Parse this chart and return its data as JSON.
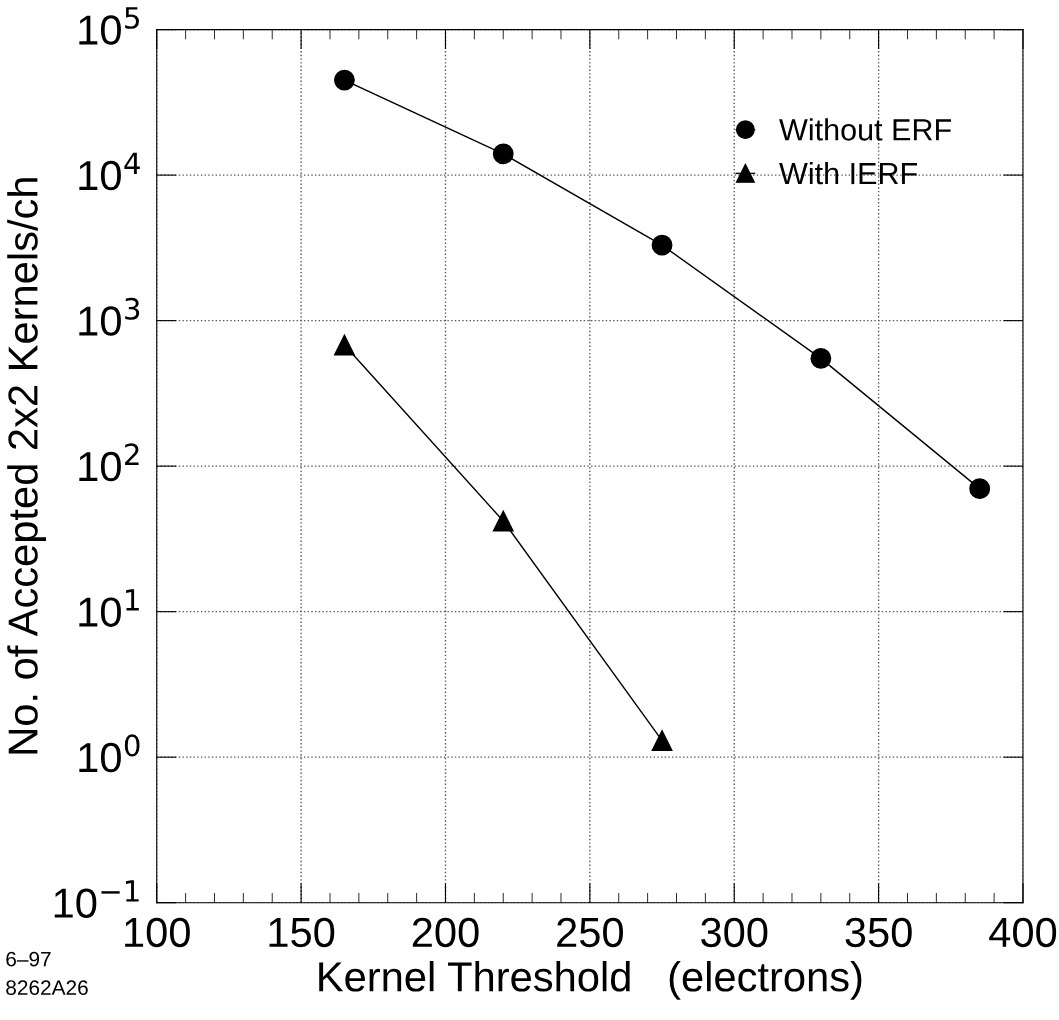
{
  "chart_data": {
    "type": "line",
    "xlabel": "Kernel Threshold   (electrons)",
    "ylabel": "No. of Accepted 2x2 Kernels/ch",
    "x": [
      165,
      220,
      275,
      330,
      385
    ],
    "series": [
      {
        "name": "Without ERF",
        "color": "#000000",
        "marker": "circle",
        "values": [
          45000,
          14000,
          3300,
          550,
          70
        ]
      },
      {
        "name": "With IERF",
        "color": "#000000",
        "marker": "triangle",
        "values": [
          680,
          42,
          1.3,
          null,
          null
        ]
      }
    ],
    "log": "y",
    "xlim": [
      100,
      400
    ],
    "xticks": [
      100,
      150,
      200,
      250,
      300,
      350,
      400
    ],
    "ylim": [
      0.1,
      100000
    ],
    "yticks": [
      {
        "value": 0.1,
        "label": "10$^{−1}$"
      },
      {
        "value": 1,
        "label": "10$^{0}$"
      },
      {
        "value": 10,
        "label": "10$^{1}$"
      },
      {
        "value": 100,
        "label": "10$^{2}$"
      },
      {
        "value": 1000,
        "label": "10$^{3}$"
      },
      {
        "value": 10000,
        "label": "10$^{4}$"
      },
      {
        "value": 100000,
        "label": "10$^{5}$"
      }
    ],
    "grid": true,
    "legend": "top right",
    "line_style": "solid",
    "annotations": [
      "6–97",
      "8262A26"
    ]
  }
}
